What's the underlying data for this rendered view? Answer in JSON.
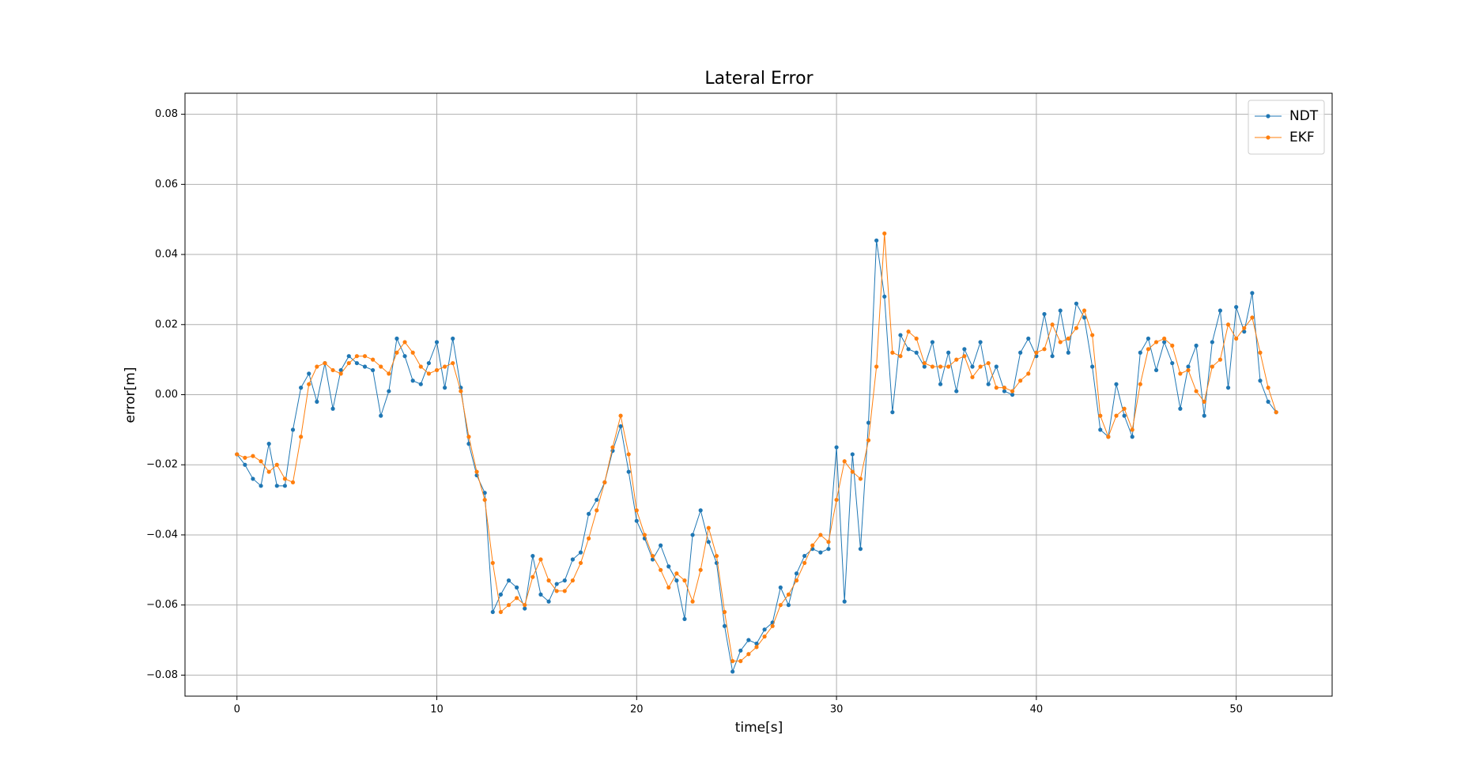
{
  "chart_data": {
    "type": "line",
    "title": "Lateral Error",
    "x_label": "time[s]",
    "y_label": "error[m]",
    "x": [
      0,
      0.4,
      0.8,
      1.2,
      1.6,
      2,
      2.4,
      2.8,
      3.2,
      3.6,
      4,
      4.4,
      4.8,
      5.2,
      5.6,
      6,
      6.4,
      6.8,
      7.2,
      7.6,
      8,
      8.4,
      8.8,
      9.2,
      9.6,
      10,
      10.4,
      10.8,
      11.2,
      11.6,
      12,
      12.4,
      12.8,
      13.2,
      13.6,
      14,
      14.4,
      14.8,
      15.2,
      15.6,
      16,
      16.4,
      16.8,
      17.2,
      17.6,
      18,
      18.4,
      18.8,
      19.2,
      19.6,
      20,
      20.4,
      20.8,
      21.2,
      21.6,
      22,
      22.4,
      22.8,
      23.2,
      23.6,
      24,
      24.4,
      24.8,
      25.2,
      25.6,
      26,
      26.4,
      26.8,
      27.2,
      27.6,
      28,
      28.4,
      28.8,
      29.2,
      29.6,
      30,
      30.4,
      30.8,
      31.2,
      31.6,
      32,
      32.4,
      32.8,
      33.2,
      33.6,
      34,
      34.4,
      34.8,
      35.2,
      35.6,
      36,
      36.4,
      36.8,
      37.2,
      37.6,
      38,
      38.4,
      38.8,
      39.2,
      39.6,
      40,
      40.4,
      40.8,
      41.2,
      41.6,
      42,
      42.4,
      42.8,
      43.2,
      43.6,
      44,
      44.4,
      44.8,
      45.2,
      45.6,
      46,
      46.4,
      46.8,
      47.2,
      47.6,
      48,
      48.4,
      48.8,
      49.2,
      49.6,
      50,
      50.4,
      50.8,
      51.2,
      51.6,
      52
    ],
    "series": [
      {
        "name": "NDT",
        "color": "#1f77b4",
        "values": [
          -0.017,
          -0.02,
          -0.024,
          -0.026,
          -0.014,
          -0.026,
          -0.026,
          -0.01,
          0.002,
          0.006,
          -0.002,
          0.009,
          -0.004,
          0.007,
          0.011,
          0.009,
          0.008,
          0.007,
          -0.006,
          0.001,
          0.016,
          0.011,
          0.004,
          0.003,
          0.009,
          0.015,
          0.002,
          0.016,
          0.002,
          -0.014,
          -0.023,
          -0.028,
          -0.062,
          -0.057,
          -0.053,
          -0.055,
          -0.061,
          -0.046,
          -0.057,
          -0.059,
          -0.054,
          -0.053,
          -0.047,
          -0.045,
          -0.034,
          -0.03,
          -0.025,
          -0.016,
          -0.009,
          -0.022,
          -0.036,
          -0.041,
          -0.047,
          -0.043,
          -0.049,
          -0.053,
          -0.064,
          -0.04,
          -0.033,
          -0.042,
          -0.048,
          -0.066,
          -0.079,
          -0.073,
          -0.07,
          -0.071,
          -0.067,
          -0.065,
          -0.055,
          -0.06,
          -0.051,
          -0.046,
          -0.044,
          -0.045,
          -0.044,
          -0.015,
          -0.059,
          -0.017,
          -0.044,
          -0.008,
          0.044,
          0.028,
          -0.005,
          0.017,
          0.013,
          0.012,
          0.008,
          0.015,
          0.003,
          0.012,
          0.001,
          0.013,
          0.008,
          0.015,
          0.003,
          0.008,
          0.001,
          0.0,
          0.012,
          0.016,
          0.011,
          0.023,
          0.011,
          0.024,
          0.012,
          0.026,
          0.022,
          0.008,
          -0.01,
          -0.012,
          0.003,
          -0.006,
          -0.012,
          0.012,
          0.016,
          0.007,
          0.015,
          0.009,
          -0.004,
          0.008,
          0.014,
          -0.006,
          0.015,
          0.024,
          0.002,
          0.025,
          0.018,
          0.029,
          0.004,
          -0.002,
          -0.005
        ]
      },
      {
        "name": "EKF",
        "color": "#ff7f0e",
        "values": [
          -0.017,
          -0.018,
          -0.0175,
          -0.019,
          -0.022,
          -0.02,
          -0.024,
          -0.025,
          -0.012,
          0.003,
          0.008,
          0.009,
          0.007,
          0.006,
          0.009,
          0.011,
          0.011,
          0.01,
          0.008,
          0.006,
          0.012,
          0.015,
          0.012,
          0.008,
          0.006,
          0.007,
          0.008,
          0.009,
          0.001,
          -0.012,
          -0.022,
          -0.03,
          -0.048,
          -0.062,
          -0.06,
          -0.058,
          -0.06,
          -0.052,
          -0.047,
          -0.053,
          -0.056,
          -0.056,
          -0.053,
          -0.048,
          -0.041,
          -0.033,
          -0.025,
          -0.015,
          -0.006,
          -0.017,
          -0.033,
          -0.04,
          -0.046,
          -0.05,
          -0.055,
          -0.051,
          -0.053,
          -0.059,
          -0.05,
          -0.038,
          -0.046,
          -0.062,
          -0.076,
          -0.076,
          -0.074,
          -0.072,
          -0.069,
          -0.066,
          -0.06,
          -0.057,
          -0.053,
          -0.048,
          -0.043,
          -0.04,
          -0.042,
          -0.03,
          -0.019,
          -0.022,
          -0.024,
          -0.013,
          0.008,
          0.046,
          0.012,
          0.011,
          0.018,
          0.016,
          0.009,
          0.008,
          0.008,
          0.008,
          0.01,
          0.011,
          0.005,
          0.008,
          0.009,
          0.002,
          0.002,
          0.001,
          0.004,
          0.006,
          0.012,
          0.013,
          0.02,
          0.015,
          0.016,
          0.019,
          0.024,
          0.017,
          -0.006,
          -0.012,
          -0.006,
          -0.004,
          -0.01,
          0.003,
          0.013,
          0.015,
          0.016,
          0.014,
          0.006,
          0.007,
          0.001,
          -0.002,
          0.008,
          0.01,
          0.02,
          0.016,
          0.019,
          0.022,
          0.012,
          0.002,
          -0.005
        ]
      }
    ],
    "xlim": [
      -2.6,
      54.8
    ],
    "xticks": [
      0,
      10,
      20,
      30,
      40,
      50
    ],
    "ylim": [
      -0.086,
      0.086
    ],
    "yticks": [
      {
        "value": -0.08,
        "label": "−0.08"
      },
      {
        "value": -0.06,
        "label": "−0.06"
      },
      {
        "value": -0.04,
        "label": "−0.04"
      },
      {
        "value": -0.02,
        "label": "−0.02"
      },
      {
        "value": 0,
        "label": "0.00"
      },
      0.02,
      0.04,
      0.06,
      0.08
    ],
    "grid": true,
    "legend": "upper right"
  }
}
